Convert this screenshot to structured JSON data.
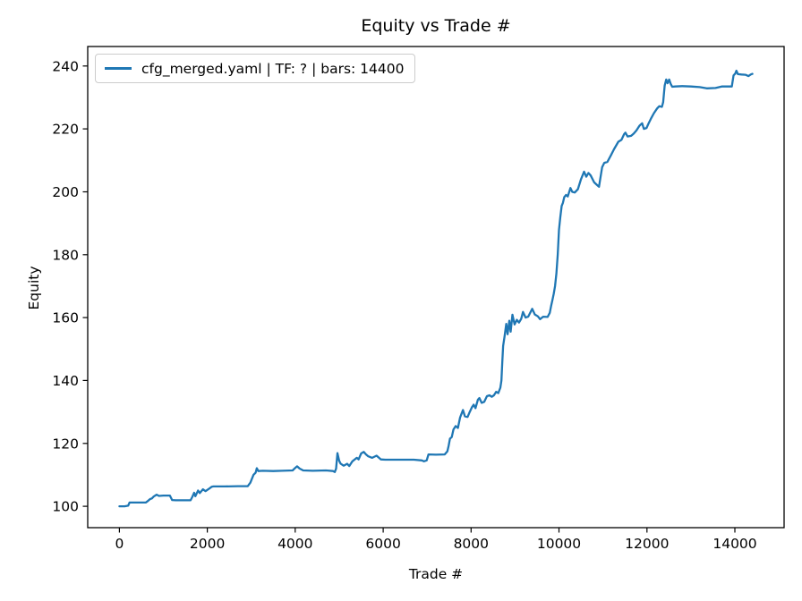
{
  "chart_data": {
    "type": "line",
    "title": "Equity vs Trade #",
    "xlabel": "Trade #",
    "ylabel": "Equity",
    "xlim": [
      -720,
      15120
    ],
    "ylim": [
      93.2,
      246.2
    ],
    "xticks": [
      0,
      2000,
      4000,
      6000,
      8000,
      10000,
      12000,
      14000
    ],
    "yticks": [
      100,
      120,
      140,
      160,
      180,
      200,
      220,
      240
    ],
    "grid": false,
    "legend_position": "upper left",
    "colors": {
      "line": "#1f77b4",
      "legend_border": "#cccccc",
      "axes": "#000000",
      "background": "#ffffff"
    },
    "series": [
      {
        "name": "cfg_merged.yaml | TF: ? | bars: 14400",
        "color": "#1f77b4",
        "points": [
          [
            0,
            100
          ],
          [
            120,
            100
          ],
          [
            200,
            100.2
          ],
          [
            230,
            101.2
          ],
          [
            600,
            101.2
          ],
          [
            640,
            101.6
          ],
          [
            700,
            102.3
          ],
          [
            740,
            102.5
          ],
          [
            780,
            103.1
          ],
          [
            848,
            103.7
          ],
          [
            900,
            103.3
          ],
          [
            1000,
            103.4
          ],
          [
            1150,
            103.4
          ],
          [
            1200,
            102.0
          ],
          [
            1280,
            101.9
          ],
          [
            1620,
            101.9
          ],
          [
            1660,
            103.0
          ],
          [
            1700,
            104.3
          ],
          [
            1730,
            103.2
          ],
          [
            1790,
            105.0
          ],
          [
            1830,
            104.2
          ],
          [
            1900,
            105.4
          ],
          [
            1960,
            104.8
          ],
          [
            2040,
            105.6
          ],
          [
            2100,
            106.2
          ],
          [
            2140,
            106.3
          ],
          [
            2400,
            106.3
          ],
          [
            2700,
            106.4
          ],
          [
            2920,
            106.4
          ],
          [
            2980,
            107.5
          ],
          [
            3050,
            110.0
          ],
          [
            3100,
            110.7
          ],
          [
            3126,
            112.1
          ],
          [
            3160,
            111.2
          ],
          [
            3260,
            111.3
          ],
          [
            3500,
            111.2
          ],
          [
            3700,
            111.3
          ],
          [
            3940,
            111.4
          ],
          [
            4000,
            112.2
          ],
          [
            4043,
            112.7
          ],
          [
            4100,
            112.0
          ],
          [
            4180,
            111.4
          ],
          [
            4400,
            111.3
          ],
          [
            4700,
            111.4
          ],
          [
            4860,
            111.2
          ],
          [
            4900,
            110.9
          ],
          [
            4930,
            112.0
          ],
          [
            4960,
            116.9
          ],
          [
            5000,
            114.5
          ],
          [
            5030,
            113.6
          ],
          [
            5100,
            112.9
          ],
          [
            5180,
            113.5
          ],
          [
            5230,
            112.8
          ],
          [
            5300,
            114.3
          ],
          [
            5400,
            115.4
          ],
          [
            5440,
            114.9
          ],
          [
            5500,
            116.8
          ],
          [
            5560,
            117.3
          ],
          [
            5610,
            116.5
          ],
          [
            5660,
            115.9
          ],
          [
            5750,
            115.4
          ],
          [
            5850,
            116.1
          ],
          [
            5950,
            114.9
          ],
          [
            6050,
            114.8
          ],
          [
            6400,
            114.8
          ],
          [
            6700,
            114.8
          ],
          [
            6880,
            114.6
          ],
          [
            6930,
            114.3
          ],
          [
            6990,
            114.6
          ],
          [
            7030,
            116.5
          ],
          [
            7200,
            116.4
          ],
          [
            7400,
            116.5
          ],
          [
            7460,
            117.5
          ],
          [
            7490,
            119.2
          ],
          [
            7520,
            121.5
          ],
          [
            7560,
            122.0
          ],
          [
            7600,
            124.4
          ],
          [
            7650,
            125.5
          ],
          [
            7700,
            124.9
          ],
          [
            7750,
            128.2
          ],
          [
            7815,
            130.6
          ],
          [
            7860,
            128.6
          ],
          [
            7920,
            128.4
          ],
          [
            7970,
            130.0
          ],
          [
            8020,
            131.5
          ],
          [
            8060,
            132.3
          ],
          [
            8100,
            131.2
          ],
          [
            8155,
            133.9
          ],
          [
            8190,
            134.4
          ],
          [
            8240,
            132.9
          ],
          [
            8300,
            133.2
          ],
          [
            8360,
            135.0
          ],
          [
            8420,
            135.3
          ],
          [
            8470,
            134.8
          ],
          [
            8520,
            135.3
          ],
          [
            8570,
            136.4
          ],
          [
            8620,
            136.0
          ],
          [
            8665,
            137.7
          ],
          [
            8690,
            140.0
          ],
          [
            8710,
            146.0
          ],
          [
            8730,
            151.0
          ],
          [
            8760,
            153.8
          ],
          [
            8800,
            158.0
          ],
          [
            8830,
            154.7
          ],
          [
            8870,
            159.0
          ],
          [
            8900,
            155.5
          ],
          [
            8940,
            160.9
          ],
          [
            8990,
            157.8
          ],
          [
            9040,
            159.3
          ],
          [
            9090,
            158.4
          ],
          [
            9140,
            159.6
          ],
          [
            9180,
            161.8
          ],
          [
            9240,
            160.0
          ],
          [
            9300,
            160.3
          ],
          [
            9390,
            162.8
          ],
          [
            9450,
            161.0
          ],
          [
            9520,
            160.4
          ],
          [
            9570,
            159.5
          ],
          [
            9640,
            160.3
          ],
          [
            9740,
            160.2
          ],
          [
            9790,
            161.5
          ],
          [
            9820,
            163.7
          ],
          [
            9850,
            165.6
          ],
          [
            9880,
            167.5
          ],
          [
            9910,
            170.0
          ],
          [
            9940,
            174.0
          ],
          [
            9970,
            180.0
          ],
          [
            10000,
            187.9
          ],
          [
            10030,
            192.0
          ],
          [
            10060,
            195.5
          ],
          [
            10090,
            196.5
          ],
          [
            10120,
            198.3
          ],
          [
            10160,
            199.0
          ],
          [
            10200,
            198.5
          ],
          [
            10260,
            201.2
          ],
          [
            10300,
            200.0
          ],
          [
            10360,
            199.8
          ],
          [
            10430,
            200.8
          ],
          [
            10500,
            204.0
          ],
          [
            10570,
            206.4
          ],
          [
            10620,
            204.8
          ],
          [
            10670,
            206.0
          ],
          [
            10720,
            205.2
          ],
          [
            10800,
            203.0
          ],
          [
            10870,
            202.1
          ],
          [
            10910,
            201.6
          ],
          [
            10980,
            207.8
          ],
          [
            11030,
            209.2
          ],
          [
            11100,
            209.5
          ],
          [
            11180,
            211.6
          ],
          [
            11250,
            213.5
          ],
          [
            11350,
            215.9
          ],
          [
            11420,
            216.5
          ],
          [
            11480,
            218.3
          ],
          [
            11510,
            218.8
          ],
          [
            11560,
            217.6
          ],
          [
            11640,
            217.8
          ],
          [
            11700,
            218.5
          ],
          [
            11760,
            219.5
          ],
          [
            11830,
            221.0
          ],
          [
            11890,
            221.8
          ],
          [
            11930,
            220.0
          ],
          [
            11990,
            220.3
          ],
          [
            12030,
            221.5
          ],
          [
            12100,
            223.5
          ],
          [
            12160,
            225.0
          ],
          [
            12230,
            226.5
          ],
          [
            12280,
            227.2
          ],
          [
            12340,
            227.0
          ],
          [
            12370,
            228.5
          ],
          [
            12404,
            233.8
          ],
          [
            12438,
            235.7
          ],
          [
            12470,
            234.5
          ],
          [
            12506,
            235.7
          ],
          [
            12540,
            234.3
          ],
          [
            12575,
            233.4
          ],
          [
            12640,
            233.5
          ],
          [
            12800,
            233.6
          ],
          [
            13000,
            233.5
          ],
          [
            13200,
            233.3
          ],
          [
            13360,
            232.9
          ],
          [
            13560,
            233.0
          ],
          [
            13700,
            233.5
          ],
          [
            13930,
            233.5
          ],
          [
            13970,
            237.0
          ],
          [
            14010,
            237.6
          ],
          [
            14035,
            238.5
          ],
          [
            14070,
            237.4
          ],
          [
            14150,
            237.3
          ],
          [
            14240,
            237.2
          ],
          [
            14310,
            236.8
          ],
          [
            14360,
            237.3
          ],
          [
            14400,
            237.5
          ]
        ]
      }
    ]
  },
  "legend": {
    "label": "cfg_merged.yaml | TF: ? | bars: 14400"
  }
}
